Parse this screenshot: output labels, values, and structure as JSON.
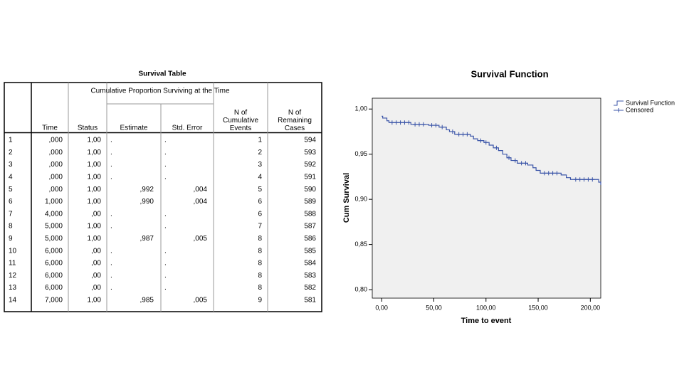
{
  "table": {
    "title": "Survival Table",
    "group_header": "Cumulative Proportion Surviving at the Time",
    "headers": [
      "Time",
      "Status",
      "Estimate",
      "Std. Error",
      "N of Cumulative Events",
      "N of Remaining Cases"
    ],
    "rows": [
      [
        "1",
        ",000",
        "1,00",
        ".",
        ".",
        "1",
        "594"
      ],
      [
        "2",
        ",000",
        "1,00",
        ".",
        ".",
        "2",
        "593"
      ],
      [
        "3",
        ",000",
        "1,00",
        ".",
        ".",
        "3",
        "592"
      ],
      [
        "4",
        ",000",
        "1,00",
        ".",
        ".",
        "4",
        "591"
      ],
      [
        "5",
        ",000",
        "1,00",
        ",992",
        ",004",
        "5",
        "590"
      ],
      [
        "6",
        "1,000",
        "1,00",
        ",990",
        ",004",
        "6",
        "589"
      ],
      [
        "7",
        "4,000",
        ",00",
        ".",
        ".",
        "6",
        "588"
      ],
      [
        "8",
        "5,000",
        "1,00",
        ".",
        ".",
        "7",
        "587"
      ],
      [
        "9",
        "5,000",
        "1,00",
        ",987",
        ",005",
        "8",
        "586"
      ],
      [
        "10",
        "6,000",
        ",00",
        ".",
        ".",
        "8",
        "585"
      ],
      [
        "11",
        "6,000",
        ",00",
        ".",
        ".",
        "8",
        "584"
      ],
      [
        "12",
        "6,000",
        ",00",
        ".",
        ".",
        "8",
        "583"
      ],
      [
        "13",
        "6,000",
        ",00",
        ".",
        ".",
        "8",
        "582"
      ],
      [
        "14",
        "7,000",
        "1,00",
        ",985",
        ",005",
        "9",
        "581"
      ]
    ]
  },
  "chart_data": {
    "type": "step",
    "title": "Survival Function",
    "x_label": "Time to event",
    "y_label": "Cum Survival",
    "xlim": [
      -9,
      210
    ],
    "ylim": [
      0.7906,
      1.012
    ],
    "xticks": [
      {
        "value": 0,
        "label": "0,00"
      },
      {
        "value": 50,
        "label": "50,00"
      },
      {
        "value": 100,
        "label": "100,00"
      },
      {
        "value": 150,
        "label": "150,00"
      },
      {
        "value": 200,
        "label": "200,00"
      }
    ],
    "yticks": [
      {
        "value": 0.8,
        "label": "0,80"
      },
      {
        "value": 0.85,
        "label": "0,85"
      },
      {
        "value": 0.9,
        "label": "0,90"
      },
      {
        "value": 0.95,
        "label": "0,95"
      },
      {
        "value": 1.0,
        "label": "1,00"
      }
    ],
    "background": "#f0f0f0",
    "series": [
      {
        "name": "Survival Function",
        "color": "#3b55a8",
        "x": [
          0,
          1,
          5,
          7,
          28,
          45,
          55,
          62,
          65,
          70,
          85,
          88,
          92,
          98,
          103,
          107,
          112,
          116,
          120,
          124,
          130,
          140,
          145,
          148,
          152,
          172,
          177,
          181,
          208,
          210
        ],
        "values": [
          0.992,
          0.99,
          0.987,
          0.985,
          0.983,
          0.982,
          0.98,
          0.977,
          0.975,
          0.972,
          0.97,
          0.967,
          0.965,
          0.963,
          0.96,
          0.957,
          0.954,
          0.95,
          0.946,
          0.943,
          0.94,
          0.938,
          0.935,
          0.932,
          0.929,
          0.927,
          0.924,
          0.922,
          0.919,
          0.916
        ]
      },
      {
        "name": "Censored",
        "color": "#3b55a8",
        "x": [
          10,
          14,
          18,
          22,
          26,
          32,
          36,
          40,
          48,
          52,
          58,
          68,
          74,
          78,
          82,
          95,
          100,
          110,
          122,
          128,
          134,
          138,
          156,
          160,
          164,
          168,
          186,
          190,
          194,
          198,
          202
        ],
        "values": [
          0.985,
          0.985,
          0.985,
          0.985,
          0.985,
          0.983,
          0.983,
          0.983,
          0.982,
          0.982,
          0.98,
          0.975,
          0.972,
          0.972,
          0.972,
          0.965,
          0.963,
          0.957,
          0.946,
          0.943,
          0.94,
          0.94,
          0.929,
          0.929,
          0.929,
          0.929,
          0.922,
          0.922,
          0.922,
          0.922,
          0.922
        ]
      }
    ]
  }
}
